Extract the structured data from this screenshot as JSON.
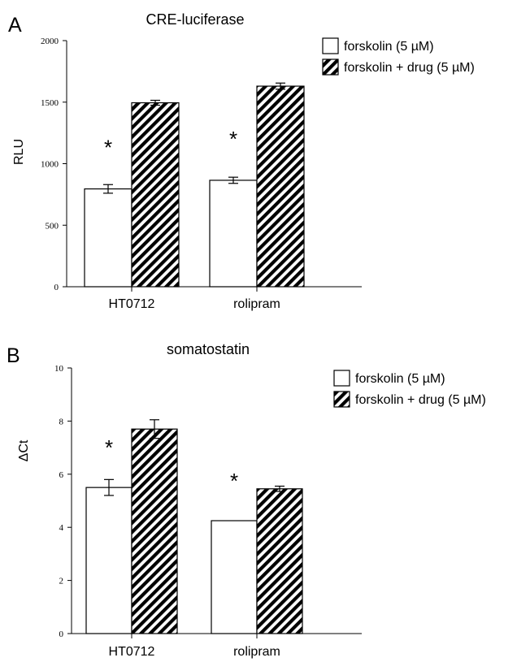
{
  "chart_data": [
    {
      "type": "bar",
      "panel": "A",
      "title": "CRE-luciferase",
      "ylabel": "RLU",
      "xlabel": "",
      "ylim": [
        0,
        2000
      ],
      "yticks": [
        "0",
        "500",
        "1000",
        "1500",
        "2000"
      ],
      "categories": [
        "HT0712",
        "rolipram"
      ],
      "series": [
        {
          "name": "forskolin (5 µM)",
          "style": "open",
          "values": [
            795,
            865
          ],
          "errors": [
            35,
            25
          ]
        },
        {
          "name": "forskolin + drug (5 µM)",
          "style": "hatched",
          "values": [
            1495,
            1630
          ],
          "errors": [
            20,
            25
          ]
        }
      ],
      "annotations": [
        {
          "text": "*",
          "category": 0
        },
        {
          "text": "*",
          "category": 1
        }
      ],
      "legend_position": "top-right",
      "grid": false
    },
    {
      "type": "bar",
      "panel": "B",
      "title": "somatostatin",
      "ylabel": "ΔCt",
      "xlabel": "",
      "ylim": [
        0,
        10
      ],
      "yticks": [
        "0",
        "2",
        "4",
        "6",
        "8",
        "10"
      ],
      "categories": [
        "HT0712",
        "rolipram"
      ],
      "series": [
        {
          "name": "forskolin (5 µM)",
          "style": "open",
          "values": [
            5.5,
            4.25
          ],
          "errors": [
            0.3,
            0
          ]
        },
        {
          "name": "forskolin + drug (5 µM)",
          "style": "hatched",
          "values": [
            7.7,
            5.45
          ],
          "errors": [
            0.35,
            0.1
          ]
        }
      ],
      "annotations": [
        {
          "text": "*",
          "category": 0
        },
        {
          "text": "*",
          "category": 1
        }
      ],
      "legend_position": "top-right",
      "grid": false
    }
  ]
}
